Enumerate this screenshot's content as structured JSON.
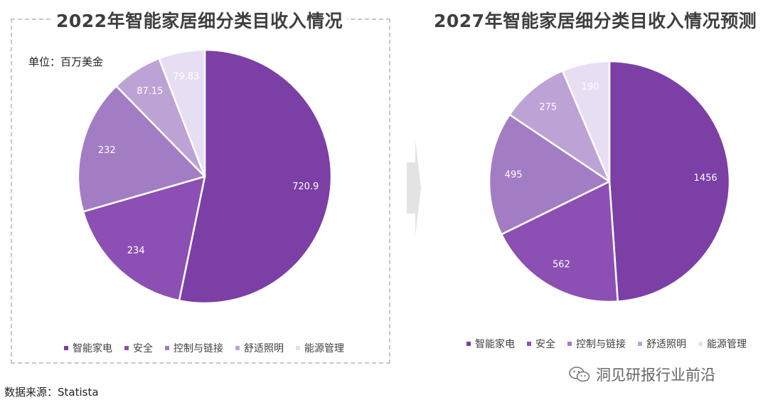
{
  "chart_data": [
    {
      "type": "pie",
      "title": "2022年智能家居细分类目收入情况",
      "unit": "单位：百万美金",
      "categories": [
        "智能家电",
        "安全",
        "控制与链接",
        "舒适照明",
        "能源管理"
      ],
      "values": [
        720.9,
        234,
        232,
        87.15,
        79.83
      ],
      "value_labels": [
        "720.9",
        "234",
        "232",
        "87.15",
        "79.83"
      ],
      "colors": [
        "#7b3fa6",
        "#8c4fb3",
        "#a37dc3",
        "#bda2d6",
        "#e8def3"
      ],
      "legend": "bottom"
    },
    {
      "type": "pie",
      "title": "2027年智能家居细分类目收入情况预测",
      "categories": [
        "智能家电",
        "安全",
        "控制与链接",
        "舒适照明",
        "能源管理"
      ],
      "values": [
        1456,
        562,
        495,
        275,
        190
      ],
      "value_labels": [
        "1456",
        "562",
        "495",
        "275",
        "190"
      ],
      "colors": [
        "#7b3fa6",
        "#8c4fb3",
        "#a37dc3",
        "#bda2d6",
        "#e8def3"
      ],
      "legend": "bottom"
    }
  ],
  "source": "数据来源：Statista",
  "watermark": "洞见研报行业前沿"
}
